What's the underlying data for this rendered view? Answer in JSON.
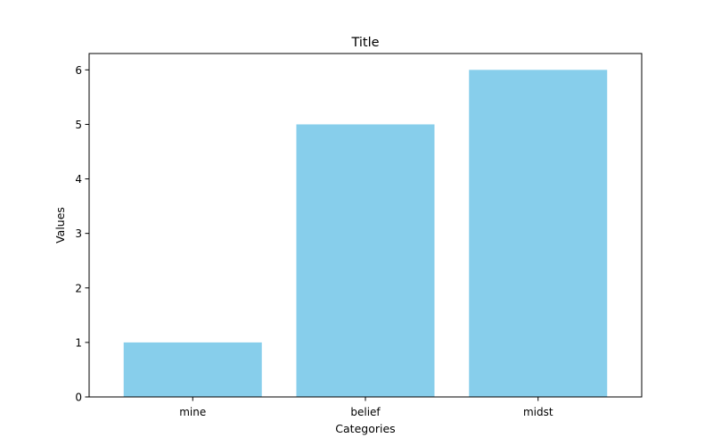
{
  "chart_data": {
    "type": "bar",
    "title": "Title",
    "xlabel": "Categories",
    "ylabel": "Values",
    "categories": [
      "mine",
      "belief",
      "midst"
    ],
    "values": [
      1,
      5,
      6
    ],
    "ylim": [
      0,
      6.3
    ],
    "yticks": [
      0,
      1,
      2,
      3,
      4,
      5,
      6
    ],
    "bar_color": "#87ceeb",
    "grid": false,
    "legend": "none"
  }
}
